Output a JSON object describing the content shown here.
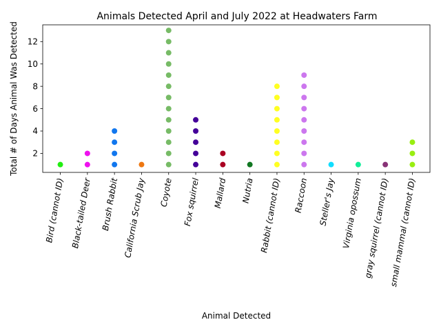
{
  "chart_data": {
    "type": "scatter",
    "title": "Animals Detected April and July 2022 at Headwaters Farm",
    "xlabel": "Animal Detected",
    "ylabel": "Total # of Days Animal Was Detected",
    "ylim": [
      0.3,
      13.5
    ],
    "yticks": [
      2,
      4,
      6,
      8,
      10,
      12
    ],
    "grid": false,
    "legend": "none",
    "categories": [
      "Bird (cannot ID)",
      "Black-tailed Deer",
      "Brush Rabbit",
      "California Scrub Jay",
      "Coyote",
      "Fox squirrel",
      "Mallard",
      "Nutria",
      "Rabbit (cannot ID)",
      "Raccoon",
      "Steller's Jay",
      "Virginia opossum",
      "gray squirrel (cannot ID)",
      "small mammal (cannot ID)"
    ],
    "series": [
      {
        "category": "Bird (cannot ID)",
        "color": "#22ee11",
        "values": [
          1
        ]
      },
      {
        "category": "Black-tailed Deer",
        "color": "#ee11ee",
        "values": [
          1,
          2
        ]
      },
      {
        "category": "Brush Rabbit",
        "color": "#1177ee",
        "values": [
          1,
          2,
          3,
          4
        ]
      },
      {
        "category": "California Scrub Jay",
        "color": "#ee7711",
        "values": [
          1
        ]
      },
      {
        "category": "Coyote",
        "color": "#77bb66",
        "values": [
          1,
          2,
          3,
          4,
          5,
          6,
          7,
          8,
          9,
          10,
          11,
          12,
          13
        ]
      },
      {
        "category": "Fox squirrel",
        "color": "#440099",
        "values": [
          1,
          2,
          3,
          4,
          5
        ]
      },
      {
        "category": "Mallard",
        "color": "#aa0022",
        "values": [
          1,
          2
        ]
      },
      {
        "category": "Nutria",
        "color": "#117722",
        "values": [
          1
        ]
      },
      {
        "category": "Rabbit (cannot ID)",
        "color": "#ffff22",
        "values": [
          1,
          2,
          3,
          4,
          5,
          6,
          7,
          8
        ]
      },
      {
        "category": "Raccoon",
        "color": "#cc77ee",
        "values": [
          1,
          2,
          3,
          4,
          5,
          6,
          7,
          8,
          9
        ]
      },
      {
        "category": "Steller's Jay",
        "color": "#11ddff",
        "values": [
          1
        ]
      },
      {
        "category": "Virginia opossum",
        "color": "#11ee99",
        "values": [
          1
        ]
      },
      {
        "category": "gray squirrel (cannot ID)",
        "color": "#883377",
        "values": [
          1
        ]
      },
      {
        "category": "small mammal (cannot ID)",
        "color": "#99ee11",
        "values": [
          1,
          2,
          3
        ]
      }
    ]
  }
}
